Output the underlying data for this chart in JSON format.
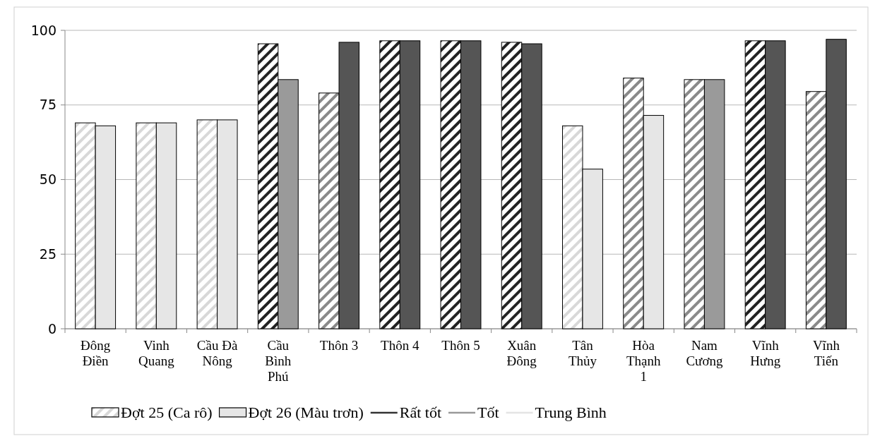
{
  "chart_data": {
    "type": "bar",
    "categories": [
      "Đông Điền",
      "Vinh Quang",
      "Cầu Đà Nông",
      "Cầu Bình Phú",
      "Thôn 3",
      "Thôn 4",
      "Thôn 5",
      "Xuân Đông",
      "Tân Thủy",
      "Hòa Thạnh 1",
      "Nam Cương",
      "Vĩnh Hưng",
      "Vĩnh Tiến"
    ],
    "series": [
      {
        "name": "Đợt 25 (Ca rô)",
        "color": "#d8d8d8",
        "colors": [
          "#d8d8d8",
          "#d8d8d8",
          "#d8d8d8",
          "#222222",
          "#8a8a8a",
          "#222222",
          "#222222",
          "#222222",
          "#d8d8d8",
          "#8a8a8a",
          "#8a8a8a",
          "#222222",
          "#8a8a8a"
        ],
        "values": [
          69,
          69,
          70,
          95.5,
          79,
          96.5,
          96.5,
          96,
          68,
          84,
          83.5,
          96.5,
          79.5
        ]
      },
      {
        "name": "Đợt 26 (Màu trơn)",
        "color": "#e6e6e6",
        "colors": [
          "#e6e6e6",
          "#e6e6e6",
          "#e6e6e6",
          "#9a9a9a",
          "#555555",
          "#555555",
          "#555555",
          "#555555",
          "#e6e6e6",
          "#e6e6e6",
          "#9a9a9a",
          "#555555",
          "#555555"
        ],
        "values": [
          68,
          69,
          70,
          83.5,
          96,
          96.5,
          96.5,
          95.5,
          53.5,
          71.5,
          83.5,
          96.5,
          97
        ]
      },
      {
        "name": "Rất tốt",
        "type": "line",
        "color": "#333333",
        "values": [
          null,
          null,
          null,
          null,
          null,
          null,
          null,
          null,
          null,
          null,
          null,
          null,
          null
        ]
      },
      {
        "name": "Tốt",
        "type": "line",
        "color": "#999999",
        "values": [
          null,
          null,
          null,
          null,
          null,
          null,
          null,
          null,
          null,
          null,
          null,
          null,
          null
        ]
      },
      {
        "name": "Trung Bình",
        "type": "line",
        "color": "#e4e4e4",
        "values": [
          null,
          null,
          null,
          null,
          null,
          null,
          null,
          null,
          null,
          null,
          null,
          null,
          null
        ]
      }
    ],
    "ylim": [
      0,
      100
    ],
    "yticks": [
      0,
      25,
      50,
      75,
      100
    ],
    "grid": "y",
    "legend": "bottom"
  }
}
